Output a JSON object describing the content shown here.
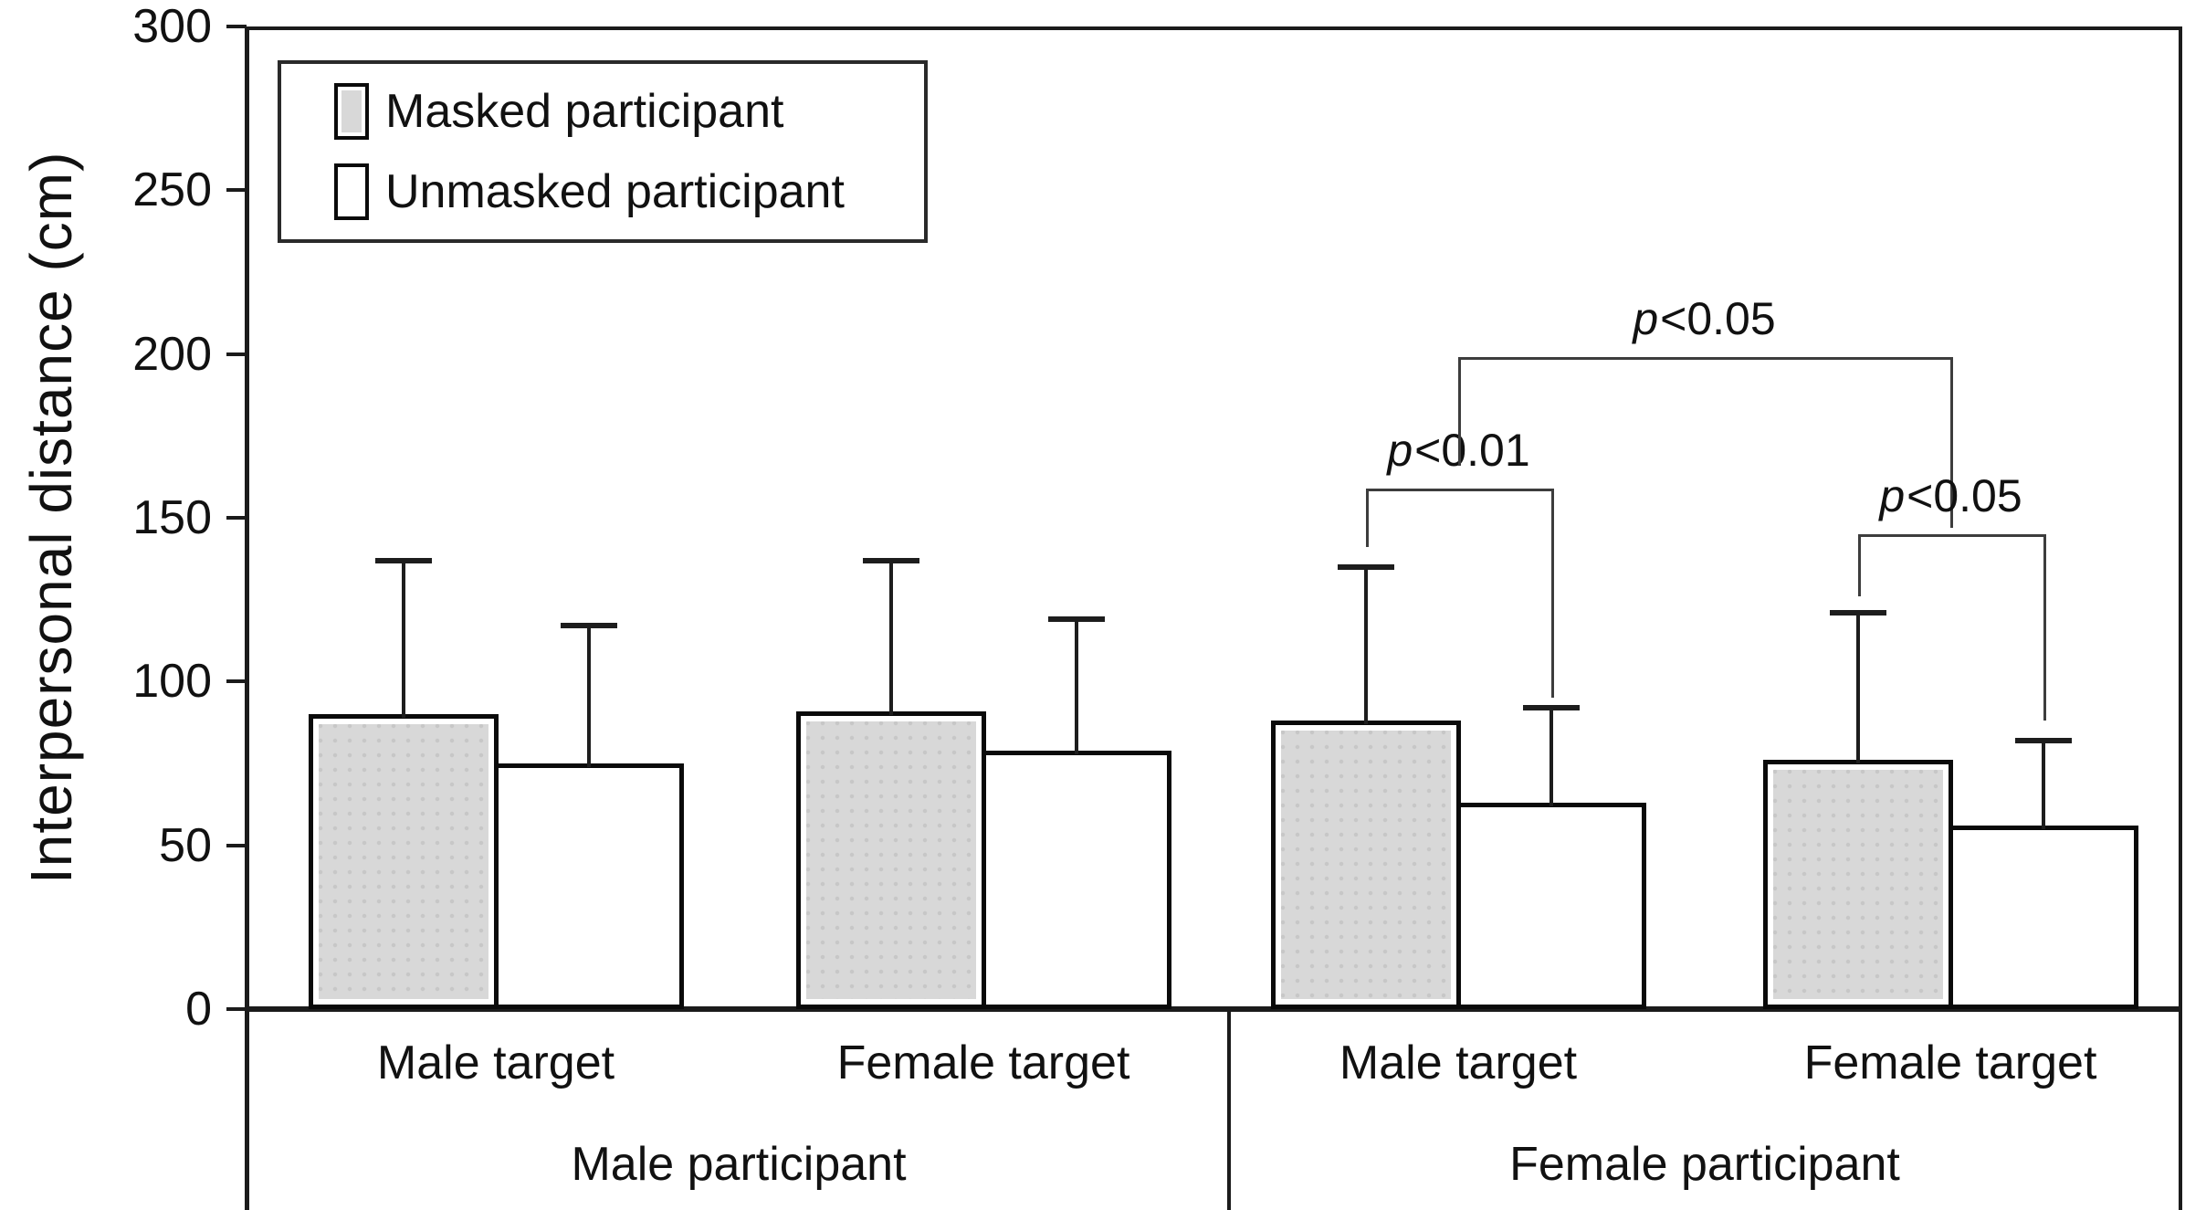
{
  "chart_data": {
    "type": "bar",
    "title": "",
    "ylabel": "Interpersonal distance (cm)",
    "ylim": [
      0,
      300
    ],
    "yticks": [
      0,
      50,
      100,
      150,
      200,
      250,
      300
    ],
    "grid": false,
    "legend_position": "top-left-inside",
    "categories_level1": [
      "Male target",
      "Female target",
      "Male target",
      "Female target"
    ],
    "categories_level2": [
      "Male participant",
      "Female participant"
    ],
    "series": [
      {
        "name": "Masked participant",
        "fill": "#d8d8d8",
        "values": [
          90,
          91,
          88,
          76
        ],
        "error_bar_tops": [
          137,
          137,
          135,
          121
        ]
      },
      {
        "name": "Unmasked participant",
        "fill": "#ffffff",
        "values": [
          75,
          79,
          63,
          56
        ],
        "error_bar_tops": [
          117,
          119,
          92,
          82
        ]
      }
    ],
    "groups": [
      {
        "participant": "Male participant",
        "target": "Male target",
        "masked_mean": 90,
        "masked_err_top": 137,
        "unmasked_mean": 75,
        "unmasked_err_top": 117
      },
      {
        "participant": "Male participant",
        "target": "Female target",
        "masked_mean": 91,
        "masked_err_top": 137,
        "unmasked_mean": 79,
        "unmasked_err_top": 119
      },
      {
        "participant": "Female participant",
        "target": "Male target",
        "masked_mean": 88,
        "masked_err_top": 135,
        "unmasked_mean": 63,
        "unmasked_err_top": 92
      },
      {
        "participant": "Female participant",
        "target": "Female target",
        "masked_mean": 76,
        "masked_err_top": 121,
        "unmasked_mean": 56,
        "unmasked_err_top": 82
      }
    ],
    "annotations": [
      {
        "label": "p<0.01",
        "from": "g3.masked",
        "to": "g3.unmasked",
        "y": 159,
        "left_leg_to": 141,
        "right_leg_to": 95
      },
      {
        "label": "p<0.05",
        "from": "g3.mid",
        "to": "g4.mid",
        "y": 199,
        "left_leg_to": 166,
        "right_leg_to": 147
      },
      {
        "label": "p<0.05",
        "from": "g4.masked",
        "to": "g4.unmasked",
        "y": 145,
        "left_leg_to": 126,
        "right_leg_to": 88
      }
    ]
  },
  "legend": {
    "items": [
      {
        "label": "Masked participant"
      },
      {
        "label": "Unmasked participant"
      }
    ]
  }
}
